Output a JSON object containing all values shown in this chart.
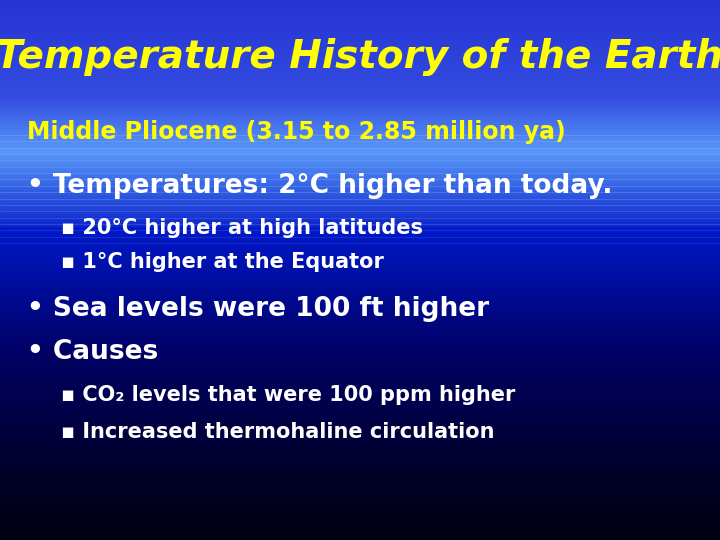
{
  "title": "Temperature History of the Earth",
  "title_color": "#FFFF00",
  "title_fontsize": 28,
  "subtitle": "Middle Pliocene (3.15 to 2.85 million ya)",
  "subtitle_color": "#FFFF00",
  "subtitle_fontsize": 17,
  "bullet1": "Temperatures: 2°C higher than today.",
  "bullet1_color": "#FFFFFF",
  "bullet1_fontsize": 19,
  "sub1a": "20°C higher at high latitudes",
  "sub1b": "1°C higher at the Equator",
  "sub_color": "#FFFFFF",
  "sub_fontsize": 15,
  "bullet2": "Sea levels were 100 ft higher",
  "bullet2_color": "#FFFFFF",
  "bullet2_fontsize": 19,
  "bullet3": "Causes",
  "bullet3_color": "#FFFFFF",
  "bullet3_fontsize": 19,
  "sub3a": "CO₂ levels that were 100 ppm higher",
  "sub3b": "Increased thermohaline circulation",
  "fig_width": 7.2,
  "fig_height": 5.4,
  "dpi": 100
}
